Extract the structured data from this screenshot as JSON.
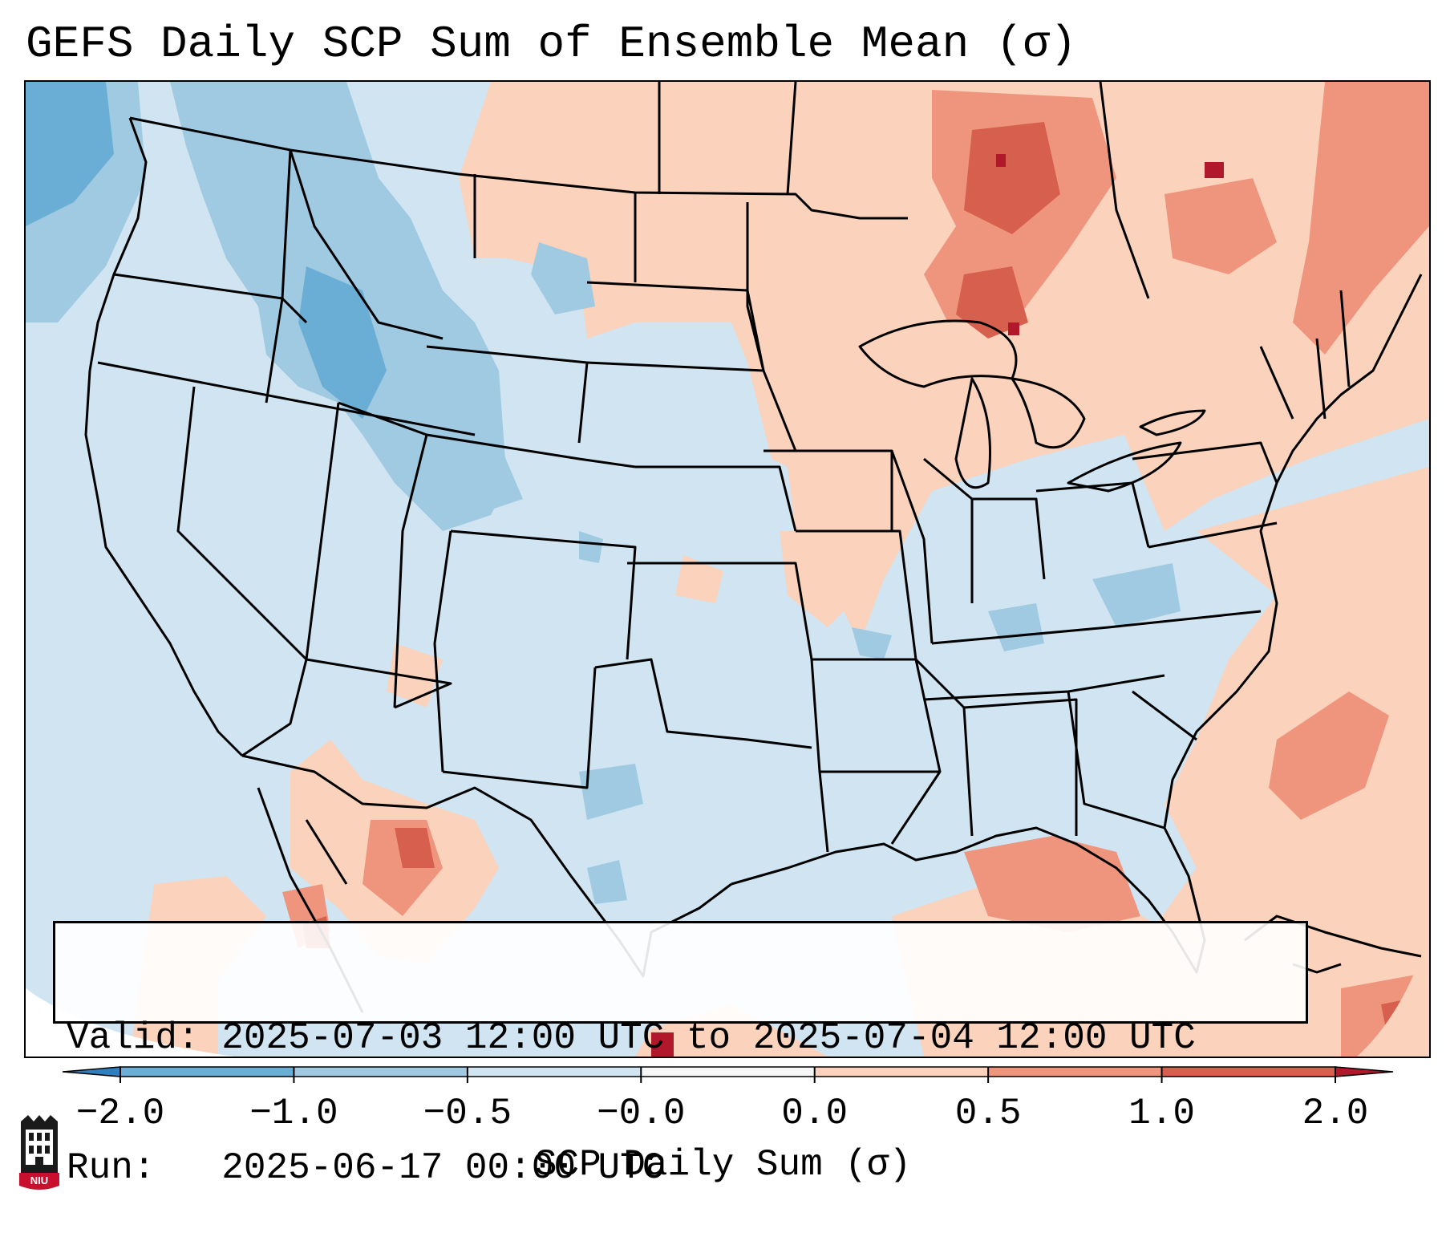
{
  "title": "GEFS Daily SCP Sum of Ensemble Mean (σ)",
  "info": {
    "valid_label": "Valid:",
    "valid_value": "2025-07-03 12:00 UTC to 2025-07-04 12:00 UTC",
    "run_label": "Run:",
    "run_value": "2025-06-17 00:00 UTC"
  },
  "colorbar": {
    "label": "SCP Daily Sum (σ)",
    "ticks": [
      "−2.0",
      "−1.0",
      "−0.5",
      "−0.0",
      "0.0",
      "0.5",
      "1.0",
      "2.0"
    ],
    "colors": [
      "#2f7fbf",
      "#6aaed6",
      "#9fcae1",
      "#d0e4f1",
      "#f7f7f7",
      "#fbd2bc",
      "#f0957d",
      "#d6604d",
      "#b2182b"
    ],
    "extend": "both"
  },
  "logo": {
    "text": "NIU",
    "icon": "niu-logo-icon"
  },
  "map": {
    "region": "Continental United States",
    "colors": {
      "neg_strong": "#6aaed6",
      "neg": "#9fcae1",
      "neg_weak": "#d0e4f1",
      "pos_weak": "#fbd2bc",
      "pos": "#f0957d",
      "pos_strong": "#d6604d",
      "pos_max": "#b2182b"
    }
  }
}
